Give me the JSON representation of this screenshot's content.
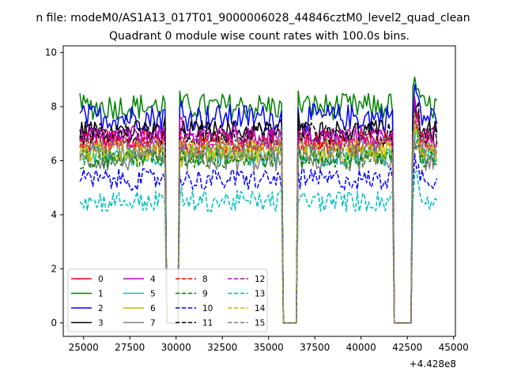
{
  "suptitle": "n file: modeM0/AS1A13_017T01_9000006028_44846cztM0_level2_quad_clean",
  "chart_data": {
    "type": "line",
    "title": "Quadrant 0 module wise count rates with 100.0s bins.",
    "xlabel": "",
    "ylabel": "",
    "offset_label": "+4.428e8",
    "xlim": [
      23900,
      45100
    ],
    "ylim": [
      -0.5,
      10.25
    ],
    "xticks": [
      25000,
      27500,
      30000,
      32500,
      35000,
      37500,
      40000,
      42500,
      45000
    ],
    "xtick_labels": [
      "25000",
      "27500",
      "30000",
      "32500",
      "35000",
      "37500",
      "40000",
      "42500",
      "45000"
    ],
    "yticks": [
      0,
      2,
      4,
      6,
      8,
      10
    ],
    "ytick_labels": [
      "0",
      "2",
      "4",
      "6",
      "8",
      "10"
    ],
    "segments": [
      [
        24800,
        29400
      ],
      [
        30200,
        35700
      ],
      [
        36600,
        41700
      ],
      [
        42800,
        44100
      ]
    ],
    "gaps": [
      [
        29500,
        30100
      ],
      [
        35800,
        36500
      ],
      [
        41800,
        42700
      ]
    ],
    "series": [
      {
        "name": "0",
        "color": "#ff0000",
        "dash": "solid",
        "base": 6.6
      },
      {
        "name": "1",
        "color": "#008000",
        "dash": "solid",
        "base": 8.0
      },
      {
        "name": "2",
        "color": "#0000ff",
        "dash": "solid",
        "base": 7.6
      },
      {
        "name": "3",
        "color": "#000000",
        "dash": "solid",
        "base": 7.1
      },
      {
        "name": "4",
        "color": "#bf00bf",
        "dash": "solid",
        "base": 6.9
      },
      {
        "name": "5",
        "color": "#00bfbf",
        "dash": "solid",
        "base": 6.2
      },
      {
        "name": "6",
        "color": "#bfbf00",
        "dash": "solid",
        "base": 6.3
      },
      {
        "name": "7",
        "color": "#808080",
        "dash": "solid",
        "base": 6.0
      },
      {
        "name": "8",
        "color": "#ff0000",
        "dash": "dashed",
        "base": 6.7
      },
      {
        "name": "9",
        "color": "#008000",
        "dash": "dashed",
        "base": 6.1
      },
      {
        "name": "10",
        "color": "#0000ff",
        "dash": "dashed",
        "base": 5.3
      },
      {
        "name": "11",
        "color": "#000000",
        "dash": "dashed",
        "base": 7.0
      },
      {
        "name": "12",
        "color": "#bf00bf",
        "dash": "dashed",
        "base": 6.8
      },
      {
        "name": "13",
        "color": "#00bfbf",
        "dash": "dashed",
        "base": 4.5
      },
      {
        "name": "14",
        "color": "#bfbf00",
        "dash": "dashed",
        "base": 6.4
      },
      {
        "name": "15",
        "color": "#808080",
        "dash": "dashed",
        "base": 6.5
      }
    ],
    "legend": {
      "placement": "lower-left",
      "ncol": 4
    }
  }
}
